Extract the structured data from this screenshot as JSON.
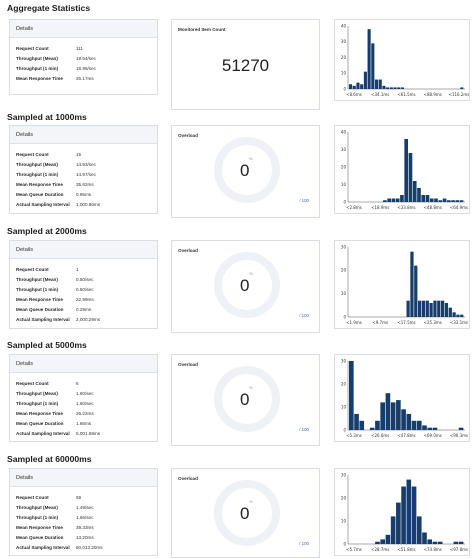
{
  "common": {
    "details_label": "Details",
    "overload_label": "Overload",
    "percent_sign": "%",
    "overload_max": "/ 100",
    "row_labels": {
      "request_count": "Request Count",
      "throughput_mean": "Throughput (Mean)",
      "throughput_1min": "Throughput (1 min)",
      "mean_response_time": "Mean Response Time",
      "mean_queue_duration": "Mean Queue Duration",
      "actual_sampling_interval": "Actual Sampling Interval"
    },
    "bar_color": "#163d6b",
    "gauge_color": "#eef1f5"
  },
  "aggregate": {
    "title": "Aggregate Statistics",
    "details": {
      "request_count": "111",
      "throughput_mean": "18.54/sec",
      "throughput_1min": "18.95/sec",
      "mean_response_time": "26.17ms"
    },
    "monitored_label": "Monitored Item Count",
    "monitored_value": "51270",
    "histogram": {
      "yticks": [
        "40",
        "30",
        "20",
        "10",
        "0"
      ],
      "xticks": [
        "<8.6ms",
        "<34.1ms",
        "<61.5ms",
        "<88.9ms",
        "<116.2ms"
      ]
    }
  },
  "s1000": {
    "title": "Sampled at 1000ms",
    "details": {
      "request_count": "15",
      "throughput_mean": "14.93/sec",
      "throughput_1min": "14.97/sec",
      "mean_response_time": "35.82ms",
      "mean_queue_duration": "0.95ms",
      "actual_sampling_interval": "1,000.86ms"
    },
    "overload_value": "0",
    "histogram": {
      "yticks": [
        "40",
        "30",
        "20",
        "10",
        "0"
      ],
      "xticks": [
        "<2.8ms",
        "<18.9ms",
        "<33.8ms",
        "<48.8ms",
        "<64.9ms"
      ]
    }
  },
  "s2000": {
    "title": "Sampled at 2000ms",
    "details": {
      "request_count": "1",
      "throughput_mean": "0.50/sec",
      "throughput_1min": "0.50/sec",
      "mean_response_time": "22.99ms",
      "mean_queue_duration": "0.29ms",
      "actual_sampling_interval": "2,000.29ms"
    },
    "overload_value": "0",
    "histogram": {
      "yticks": [
        "30",
        "20",
        "10",
        "0"
      ],
      "xticks": [
        "<1.9ms",
        "<9.7ms",
        "<17.5ms",
        "<25.3ms",
        "<33.1ms"
      ]
    }
  },
  "s5000": {
    "title": "Sampled at 5000ms",
    "details": {
      "request_count": "6",
      "throughput_mean": "1.60/sec",
      "throughput_1min": "1.60/sec",
      "mean_response_time": "26.22ms",
      "mean_queue_duration": "1.66ms",
      "actual_sampling_interval": "5,001.68ms"
    },
    "overload_value": "0",
    "histogram": {
      "yticks": [
        "30",
        "20",
        "10",
        "0"
      ],
      "xticks": [
        "<5.3ms",
        "<26.6ms",
        "<47.8ms",
        "<69.0ms",
        "<90.3ms"
      ]
    }
  },
  "s60000": {
    "title": "Sampled at 60000ms",
    "details": {
      "request_count": "69",
      "throughput_mean": "1.49/sec",
      "throughput_1min": "1.66/sec",
      "mean_response_time": "39.33ms",
      "mean_queue_duration": "13.20ms",
      "actual_sampling_interval": "60,013.20ms"
    },
    "overload_value": "0",
    "histogram": {
      "yticks": [
        "30",
        "20",
        "10",
        "0"
      ],
      "xticks": [
        "<5.7ms",
        "<28.7ms",
        "<51.8ms",
        "<74.8ms",
        "<97.8ms"
      ]
    }
  },
  "chart_data": [
    {
      "type": "bar",
      "ylim": [
        0,
        40
      ],
      "values": [
        3,
        2,
        4,
        3,
        11,
        38,
        29,
        6,
        6,
        2,
        1,
        1,
        1,
        1,
        1,
        0,
        0,
        0,
        0,
        0,
        0,
        0,
        0,
        0,
        0,
        0,
        0,
        0,
        0,
        0,
        1
      ]
    },
    {
      "type": "bar",
      "ylim": [
        0,
        40
      ],
      "values": [
        0,
        0,
        0,
        0,
        0,
        0,
        0,
        0,
        1,
        2,
        2,
        2,
        4,
        36,
        28,
        12,
        8,
        4,
        4,
        2,
        2,
        1,
        2,
        1,
        1,
        1,
        1
      ]
    },
    {
      "type": "bar",
      "ylim": [
        0,
        30
      ],
      "values": [
        0,
        0,
        0,
        0,
        0,
        0,
        0,
        0,
        0,
        0,
        0,
        0,
        0,
        0,
        0,
        7,
        28,
        22,
        7,
        7,
        7,
        6,
        7,
        7,
        7,
        6,
        4,
        2,
        1,
        1
      ]
    },
    {
      "type": "bar",
      "ylim": [
        0,
        30
      ],
      "values": [
        30,
        7,
        4,
        0,
        1,
        4,
        12,
        16,
        12,
        13,
        9,
        7,
        4,
        4,
        2,
        1,
        1,
        0,
        0,
        0,
        0,
        1
      ]
    },
    {
      "type": "bar",
      "ylim": [
        0,
        30
      ],
      "values": [
        0,
        0,
        0,
        0,
        0,
        1,
        2,
        4,
        12,
        18,
        25,
        28,
        25,
        12,
        5,
        2,
        1,
        1,
        0,
        0,
        1,
        1
      ]
    }
  ]
}
